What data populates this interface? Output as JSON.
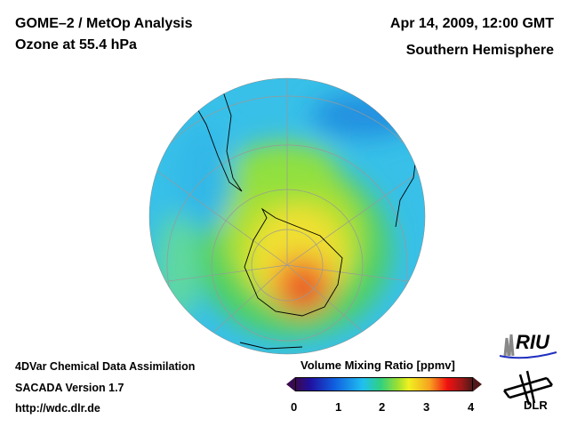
{
  "header": {
    "title_left": "GOME–2 / MetOp Analysis",
    "subtitle_left": "Ozone at 55.4 hPa",
    "title_right": "Apr 14, 2009, 12:00 GMT",
    "subtitle_right": "Southern Hemisphere"
  },
  "footer": {
    "line1": "4DVar Chemical Data Assimilation",
    "line2": "SACADA Version 1.7",
    "line3": "http://wdc.dlr.de"
  },
  "colorbar": {
    "title": "Volume Mixing Ratio [ppmv]",
    "ticks": [
      "0",
      "1",
      "2",
      "3",
      "4"
    ],
    "min": 0,
    "max": 4
  },
  "logos": {
    "riu": "RIU",
    "dlr": "DLR"
  },
  "colors": {
    "low": "#3a0a50",
    "high": "#501818"
  }
}
